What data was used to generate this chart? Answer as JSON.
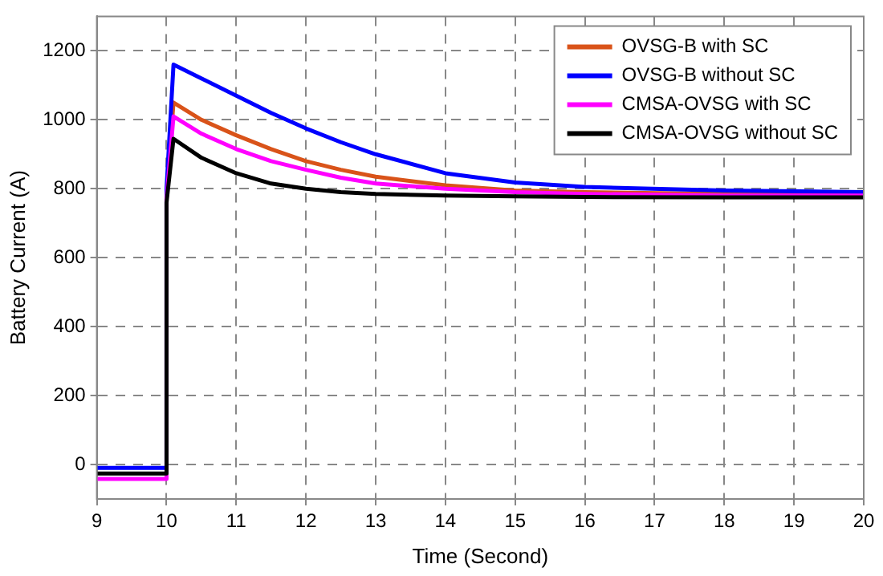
{
  "chart_data": {
    "type": "line",
    "xlabel": "Time (Second)",
    "ylabel": "Battery Current (A)",
    "x": [
      9,
      9.5,
      9.99,
      10.0,
      10.1,
      10.5,
      11,
      11.5,
      12,
      12.5,
      13,
      14,
      15,
      16,
      18,
      20
    ],
    "series": [
      {
        "name": "OVSG-B with SC",
        "color": "#d95319",
        "values": [
          null,
          null,
          null,
          780,
          1050,
          1000,
          955,
          915,
          880,
          855,
          835,
          810,
          795,
          790,
          785,
          785
        ]
      },
      {
        "name": "OVSG-B without SC",
        "color": "#0000ff",
        "values": [
          -10,
          -10,
          -10,
          800,
          1160,
          1120,
          1070,
          1020,
          975,
          935,
          900,
          845,
          818,
          805,
          795,
          790
        ]
      },
      {
        "name": "CMSA-OVSG with SC",
        "color": "#ff00ff",
        "values": [
          -42,
          -42,
          -42,
          770,
          1010,
          960,
          915,
          880,
          855,
          832,
          815,
          800,
          790,
          785,
          780,
          780
        ]
      },
      {
        "name": "CMSA-OVSG without SC",
        "color": "#000000",
        "values": [
          -26,
          -26,
          -26,
          760,
          945,
          890,
          845,
          815,
          800,
          790,
          785,
          780,
          778,
          776,
          775,
          775
        ]
      }
    ],
    "xlim": [
      9,
      20
    ],
    "xticks": [
      9,
      10,
      11,
      12,
      13,
      14,
      15,
      16,
      17,
      18,
      19,
      20
    ],
    "ylim": [
      -100,
      1300
    ],
    "yticks": [
      0,
      200,
      400,
      600,
      800,
      1000,
      1200
    ],
    "grid": true,
    "legend": "top right",
    "line_style": "solid",
    "marker": "none"
  }
}
